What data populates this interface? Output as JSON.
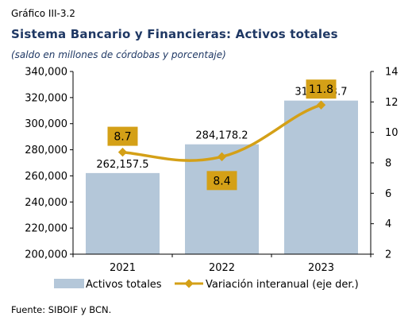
{
  "chart_label": "Gráfico III-3.2",
  "title": "Sistema Bancario y Financieras: Activos totales",
  "subtitle": "(saldo en millones de córdobas y porcentaje)",
  "source": "Fuente: SIBOIF y BCN.",
  "colors": {
    "bars": "#b4c7d9",
    "line": "#d4a017",
    "label_box": "#d4a017",
    "axis": "#000000"
  },
  "chart_data": {
    "type": "bar",
    "categories": [
      "2021",
      "2022",
      "2023"
    ],
    "series": [
      {
        "name": "Activos totales",
        "type": "bar",
        "axis": "left",
        "values": [
          262157.5,
          284178.2,
          317693.7
        ],
        "labels": [
          "262,157.5",
          "284,178.2",
          "317,693.7"
        ]
      },
      {
        "name": "Variación interanual (eje der.)",
        "type": "line",
        "axis": "right",
        "values": [
          8.7,
          8.4,
          11.8
        ],
        "labels": [
          "8.7",
          "8.4",
          "11.8"
        ]
      }
    ],
    "ylim_left": [
      200000,
      340000
    ],
    "yticks_left": [
      "200,000",
      "220,000",
      "240,000",
      "260,000",
      "280,000",
      "300,000",
      "320,000",
      "340,000"
    ],
    "ylim_right": [
      2,
      14
    ],
    "yticks_right": [
      "2",
      "4",
      "6",
      "8",
      "10",
      "12",
      "14"
    ],
    "legend_position": "bottom",
    "grid": false
  }
}
